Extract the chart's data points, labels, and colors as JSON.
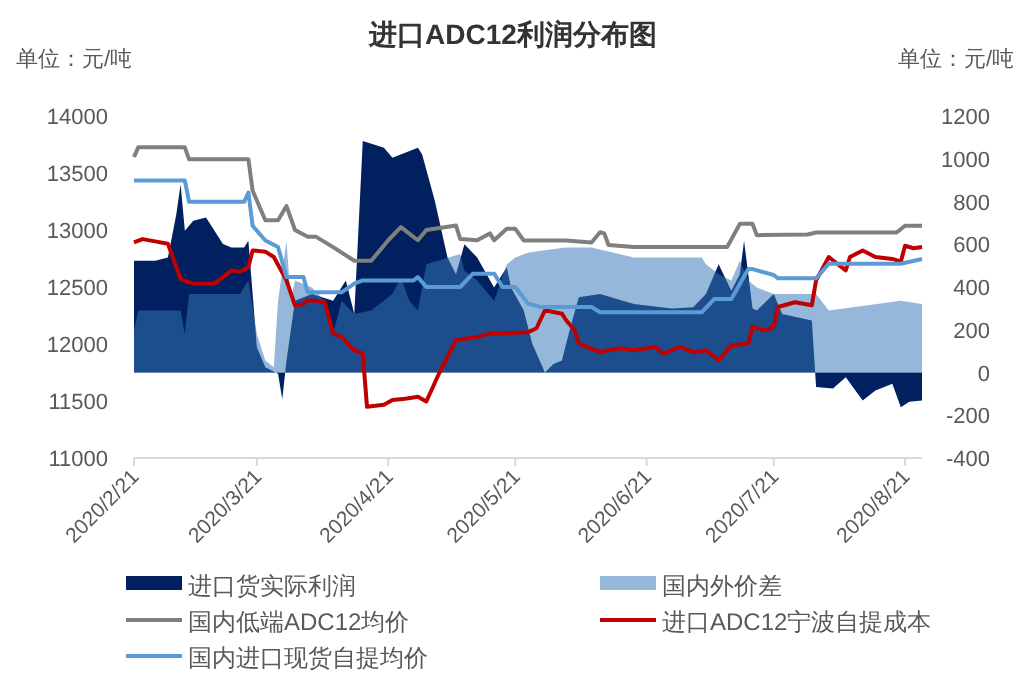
{
  "chart_data": {
    "type": "line",
    "title": "进口ADC12利润分布图",
    "ylabel": "单位：元/吨",
    "y2label": "单位：元/吨",
    "xlim": [
      "2020-02-21",
      "2020-08-25"
    ],
    "xticks": [
      {
        "value": "2020-02-21",
        "label": "2020/2/21"
      },
      {
        "value": "2020-03-21",
        "label": "2020/3/21"
      },
      {
        "value": "2020-04-21",
        "label": "2020/4/21"
      },
      {
        "value": "2020-05-21",
        "label": "2020/5/21"
      },
      {
        "value": "2020-06-21",
        "label": "2020/6/21"
      },
      {
        "value": "2020-07-21",
        "label": "2020/7/21"
      },
      {
        "value": "2020-08-21",
        "label": "2020/8/21"
      }
    ],
    "ylim": [
      11000,
      14000
    ],
    "yticks": [
      11000,
      11500,
      12000,
      12500,
      13000,
      13500,
      14000
    ],
    "y2lim": [
      -400,
      1200
    ],
    "y2ticks": [
      -400,
      -200,
      0,
      200,
      400,
      600,
      800,
      1000,
      1200
    ],
    "grid": false,
    "legend": "bottom",
    "line_style": "solid",
    "series": [
      {
        "name": "进口货实际利润",
        "type": "area",
        "axis": "y2",
        "color": "#002060",
        "x": [
          "2020-02-21",
          "2020-02-26",
          "2020-02-29",
          "2020-03-02",
          "2020-03-03",
          "2020-03-04",
          "2020-03-06",
          "2020-03-09",
          "2020-03-13",
          "2020-03-15",
          "2020-03-18",
          "2020-03-19",
          "2020-03-20",
          "2020-03-21",
          "2020-03-23",
          "2020-03-26",
          "2020-03-27",
          "2020-03-28",
          "2020-03-30",
          "2020-04-03",
          "2020-04-08",
          "2020-04-11",
          "2020-04-13",
          "2020-04-15",
          "2020-04-20",
          "2020-04-22",
          "2020-04-28",
          "2020-04-29",
          "2020-05-02",
          "2020-05-05",
          "2020-05-07",
          "2020-05-09",
          "2020-05-12",
          "2020-05-16",
          "2020-05-19",
          "2020-05-20",
          "2020-05-23",
          "2020-05-25",
          "2020-05-28",
          "2020-05-30",
          "2020-06-01",
          "2020-06-03",
          "2020-06-05",
          "2020-06-10",
          "2020-06-18",
          "2020-06-27",
          "2020-07-02",
          "2020-07-05",
          "2020-07-08",
          "2020-07-11",
          "2020-07-13",
          "2020-07-14",
          "2020-07-16",
          "2020-07-17",
          "2020-07-21",
          "2020-07-23",
          "2020-07-30",
          "2020-07-31",
          "2020-08-04",
          "2020-08-07",
          "2020-08-11",
          "2020-08-14",
          "2020-08-18",
          "2020-08-20",
          "2020-08-22",
          "2020-08-25"
        ],
        "values": [
          523,
          523,
          538,
          741,
          881,
          663,
          710,
          725,
          601,
          585,
          585,
          616,
          367,
          118,
          25,
          -6,
          -125,
          56,
          336,
          367,
          336,
          430,
          274,
          1083,
          1052,
          1005,
          1052,
          1021,
          803,
          538,
          460,
          600,
          538,
          398,
          492,
          398,
          290,
          134,
          0,
          40,
          56,
          212,
          352,
          367,
          320,
          300,
          305,
          367,
          507,
          383,
          460,
          616,
          300,
          290,
          367,
          274,
          243,
          -68,
          -75,
          -22,
          -131,
          -84,
          -53,
          -162,
          -137,
          -131
        ]
      },
      {
        "name": "国内外价差",
        "type": "area",
        "axis": "y2",
        "color": "#95b8da",
        "x": [
          "2020-02-21",
          "2020-02-22",
          "2020-03-03",
          "2020-03-04",
          "2020-03-05",
          "2020-03-17",
          "2020-03-19",
          "2020-03-21",
          "2020-03-23",
          "2020-03-25",
          "2020-03-26",
          "2020-03-28",
          "2020-03-29",
          "2020-03-30",
          "2020-04-03",
          "2020-04-06",
          "2020-04-08",
          "2020-04-10",
          "2020-04-13",
          "2020-04-17",
          "2020-04-22",
          "2020-04-24",
          "2020-04-26",
          "2020-04-28",
          "2020-04-30",
          "2020-05-08",
          "2020-05-09",
          "2020-05-12",
          "2020-05-16",
          "2020-05-19",
          "2020-05-21",
          "2020-05-24",
          "2020-05-27",
          "2020-06-02",
          "2020-06-08",
          "2020-06-18",
          "2020-07-04",
          "2020-07-05",
          "2020-07-08",
          "2020-07-11",
          "2020-07-13",
          "2020-07-15",
          "2020-07-17",
          "2020-07-21",
          "2020-07-31",
          "2020-08-03",
          "2020-08-20",
          "2020-08-25"
        ],
        "values": [
          196,
          290,
          290,
          180,
          367,
          367,
          430,
          180,
          56,
          25,
          336,
          616,
          336,
          430,
          398,
          336,
          180,
          336,
          274,
          290,
          367,
          445,
          336,
          290,
          507,
          554,
          476,
          430,
          336,
          507,
          538,
          560,
          570,
          585,
          585,
          538,
          538,
          507,
          460,
          430,
          523,
          430,
          398,
          367,
          367,
          290,
          336,
          320
        ]
      },
      {
        "name": "国内低端ADC12均价",
        "color": "#7f7f7f",
        "x": [
          "2020-02-21",
          "2020-02-22",
          "2020-03-04",
          "2020-03-05",
          "2020-03-19",
          "2020-03-20",
          "2020-03-23",
          "2020-03-26",
          "2020-03-28",
          "2020-03-30",
          "2020-04-02",
          "2020-04-04",
          "2020-04-08",
          "2020-04-13",
          "2020-04-17",
          "2020-04-21",
          "2020-04-24",
          "2020-04-28",
          "2020-04-30",
          "2020-05-07",
          "2020-05-08",
          "2020-05-12",
          "2020-05-15",
          "2020-05-16",
          "2020-05-19",
          "2020-05-21",
          "2020-05-23",
          "2020-06-02",
          "2020-06-08",
          "2020-06-10",
          "2020-06-11",
          "2020-06-12",
          "2020-06-18",
          "2020-07-10",
          "2020-07-13",
          "2020-07-16",
          "2020-07-17",
          "2020-07-29",
          "2020-07-31",
          "2020-08-19",
          "2020-08-21",
          "2020-08-25"
        ],
        "values": [
          13640,
          13725,
          13725,
          13620,
          13620,
          13345,
          13085,
          13085,
          13210,
          13000,
          12940,
          12940,
          12850,
          12730,
          12730,
          12910,
          13025,
          12910,
          13000,
          13040,
          12920,
          12910,
          12970,
          12910,
          13010,
          13010,
          12908,
          12908,
          12890,
          12980,
          12970,
          12868,
          12850,
          12850,
          13054,
          13054,
          12955,
          12960,
          12978,
          12978,
          13037,
          13037
        ]
      },
      {
        "name": "进口ADC12宁波自提成本",
        "color": "#c00000",
        "x": [
          "2020-02-21",
          "2020-02-23",
          "2020-02-26",
          "2020-02-29",
          "2020-03-03",
          "2020-03-06",
          "2020-03-11",
          "2020-03-13",
          "2020-03-15",
          "2020-03-17",
          "2020-03-19",
          "2020-03-20",
          "2020-03-23",
          "2020-03-25",
          "2020-03-28",
          "2020-03-30",
          "2020-04-01",
          "2020-04-02",
          "2020-04-06",
          "2020-04-08",
          "2020-04-10",
          "2020-04-13",
          "2020-04-15",
          "2020-04-16",
          "2020-04-20",
          "2020-04-22",
          "2020-04-25",
          "2020-04-28",
          "2020-04-30",
          "2020-05-03",
          "2020-05-07",
          "2020-05-12",
          "2020-05-15",
          "2020-05-24",
          "2020-05-26",
          "2020-05-28",
          "2020-06-01",
          "2020-06-02",
          "2020-06-04",
          "2020-06-05",
          "2020-06-10",
          "2020-06-12",
          "2020-06-15",
          "2020-06-18",
          "2020-06-23",
          "2020-06-25",
          "2020-06-29",
          "2020-07-02",
          "2020-07-05",
          "2020-07-08",
          "2020-07-11",
          "2020-07-15",
          "2020-07-16",
          "2020-07-19",
          "2020-07-21",
          "2020-07-22",
          "2020-07-26",
          "2020-07-30",
          "2020-07-31",
          "2020-08-03",
          "2020-08-05",
          "2020-08-07",
          "2020-08-08",
          "2020-08-11",
          "2020-08-14",
          "2020-08-18",
          "2020-08-20",
          "2020-08-21",
          "2020-08-23",
          "2020-08-25"
        ],
        "values": [
          12891,
          12920,
          12900,
          12879,
          12570,
          12529,
          12529,
          12587,
          12646,
          12634,
          12675,
          12821,
          12810,
          12763,
          12558,
          12336,
          12350,
          12383,
          12370,
          12091,
          12062,
          11945,
          11916,
          11449,
          11467,
          11508,
          11520,
          11537,
          11496,
          11741,
          12033,
          12062,
          12091,
          12103,
          12138,
          12296,
          12266,
          12208,
          12120,
          12004,
          11928,
          11945,
          11962,
          11945,
          11974,
          11916,
          11974,
          11928,
          11945,
          11858,
          11986,
          12004,
          12150,
          12120,
          12150,
          12325,
          12366,
          12340,
          12558,
          12763,
          12704,
          12646,
          12763,
          12821,
          12763,
          12746,
          12722,
          12862,
          12840,
          12850
        ]
      },
      {
        "name": "国内进口现货自提均价",
        "color": "#5b9bd5",
        "x": [
          "2020-02-21",
          "2020-03-04",
          "2020-03-05",
          "2020-03-18",
          "2020-03-19",
          "2020-03-20",
          "2020-03-23",
          "2020-03-26",
          "2020-03-28",
          "2020-04-01",
          "2020-04-02",
          "2020-04-10",
          "2020-04-13",
          "2020-04-15",
          "2020-04-27",
          "2020-04-28",
          "2020-04-30",
          "2020-05-08",
          "2020-05-11",
          "2020-05-16",
          "2020-05-18",
          "2020-05-21",
          "2020-05-24",
          "2020-05-27",
          "2020-06-08",
          "2020-06-10",
          "2020-07-04",
          "2020-07-07",
          "2020-07-11",
          "2020-07-15",
          "2020-07-16",
          "2020-07-21",
          "2020-07-22",
          "2020-07-31",
          "2020-08-03",
          "2020-08-20",
          "2020-08-25"
        ],
        "values": [
          13434,
          13434,
          13247,
          13247,
          13329,
          13037,
          12908,
          12850,
          12587,
          12587,
          12453,
          12453,
          12529,
          12558,
          12558,
          12587,
          12500,
          12500,
          12617,
          12617,
          12500,
          12500,
          12354,
          12325,
          12325,
          12278,
          12278,
          12395,
          12395,
          12657,
          12657,
          12605,
          12576,
          12576,
          12704,
          12704,
          12745
        ]
      }
    ]
  }
}
